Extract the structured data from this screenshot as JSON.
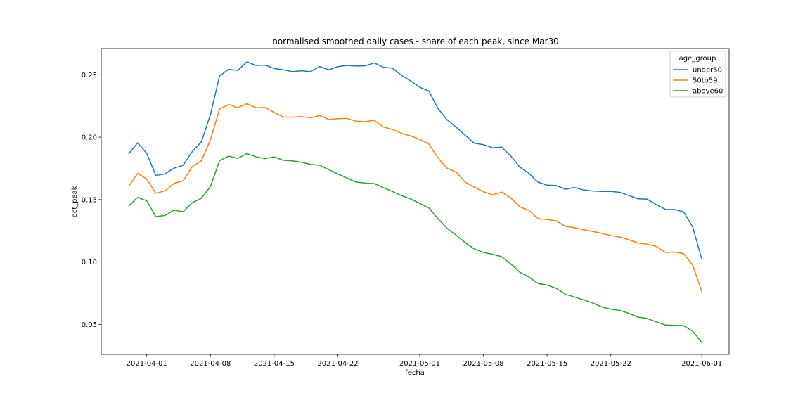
{
  "chart_data": {
    "type": "line",
    "title": "normalised smoothed daily cases - share of each peak, since Mar30",
    "xlabel": "fecha",
    "ylabel": "pct_peak",
    "x_start": "2021-03-30",
    "x_end": "2021-06-01",
    "xlim": [
      "2021-03-27",
      "2021-06-04"
    ],
    "ylim": [
      0.026,
      0.271
    ],
    "x_ticks": [
      "2021-04-01",
      "2021-04-08",
      "2021-04-15",
      "2021-04-22",
      "2021-05-01",
      "2021-05-08",
      "2021-05-15",
      "2021-05-22",
      "2021-06-01"
    ],
    "y_ticks": [
      0.05,
      0.1,
      0.15,
      0.2,
      0.25
    ],
    "y_tick_labels": [
      "0.05",
      "0.10",
      "0.15",
      "0.20",
      "0.25"
    ],
    "grid": false,
    "legend": {
      "title": "age_group",
      "placement": "top-right"
    },
    "series": [
      {
        "name": "under50",
        "color": "#1f77b4",
        "values": [
          0.1865,
          0.1955,
          0.187,
          0.1693,
          0.1705,
          0.1752,
          0.1775,
          0.1885,
          0.1962,
          0.218,
          0.249,
          0.2544,
          0.2535,
          0.2603,
          0.2575,
          0.2577,
          0.255,
          0.254,
          0.2525,
          0.2532,
          0.2525,
          0.2565,
          0.254,
          0.2565,
          0.2575,
          0.257,
          0.2572,
          0.2595,
          0.256,
          0.2553,
          0.2495,
          0.245,
          0.24,
          0.237,
          0.223,
          0.214,
          0.208,
          0.2015,
          0.1952,
          0.194,
          0.1915,
          0.192,
          0.185,
          0.176,
          0.171,
          0.164,
          0.1615,
          0.1613,
          0.1583,
          0.1597,
          0.1577,
          0.1569,
          0.1565,
          0.1565,
          0.1558,
          0.1532,
          0.1506,
          0.1503,
          0.146,
          0.1422,
          0.142,
          0.1402,
          0.128,
          0.1022
        ]
      },
      {
        "name": "50to59",
        "color": "#ff7f0e",
        "values": [
          0.1605,
          0.171,
          0.1665,
          0.155,
          0.157,
          0.163,
          0.165,
          0.1765,
          0.181,
          0.198,
          0.2225,
          0.2262,
          0.2235,
          0.2268,
          0.2235,
          0.2238,
          0.2198,
          0.2162,
          0.216,
          0.2165,
          0.2155,
          0.2173,
          0.2142,
          0.2148,
          0.215,
          0.2128,
          0.2125,
          0.2135,
          0.2082,
          0.2062,
          0.203,
          0.201,
          0.1983,
          0.1945,
          0.1835,
          0.1752,
          0.172,
          0.164,
          0.16,
          0.1563,
          0.1537,
          0.156,
          0.1513,
          0.1442,
          0.1413,
          0.1348,
          0.134,
          0.133,
          0.1285,
          0.1275,
          0.1258,
          0.1245,
          0.123,
          0.1212,
          0.12,
          0.1178,
          0.1152,
          0.1143,
          0.1125,
          0.1077,
          0.108,
          0.1067,
          0.0975,
          0.0762
        ]
      },
      {
        "name": "above60",
        "color": "#2ca02c",
        "values": [
          0.1448,
          0.1518,
          0.149,
          0.1363,
          0.1373,
          0.1415,
          0.1403,
          0.1475,
          0.151,
          0.1605,
          0.1812,
          0.1848,
          0.183,
          0.1868,
          0.1843,
          0.1828,
          0.1842,
          0.1815,
          0.181,
          0.18,
          0.1782,
          0.1775,
          0.174,
          0.1705,
          0.1673,
          0.164,
          0.1632,
          0.1628,
          0.1595,
          0.1565,
          0.1532,
          0.1505,
          0.147,
          0.1433,
          0.1348,
          0.127,
          0.1215,
          0.1155,
          0.1105,
          0.1077,
          0.1062,
          0.1042,
          0.0985,
          0.0918,
          0.088,
          0.0828,
          0.0815,
          0.079,
          0.0742,
          0.072,
          0.0697,
          0.0672,
          0.064,
          0.0622,
          0.0612,
          0.0588,
          0.0558,
          0.0548,
          0.052,
          0.0495,
          0.0492,
          0.049,
          0.0445,
          0.0355
        ]
      }
    ]
  }
}
